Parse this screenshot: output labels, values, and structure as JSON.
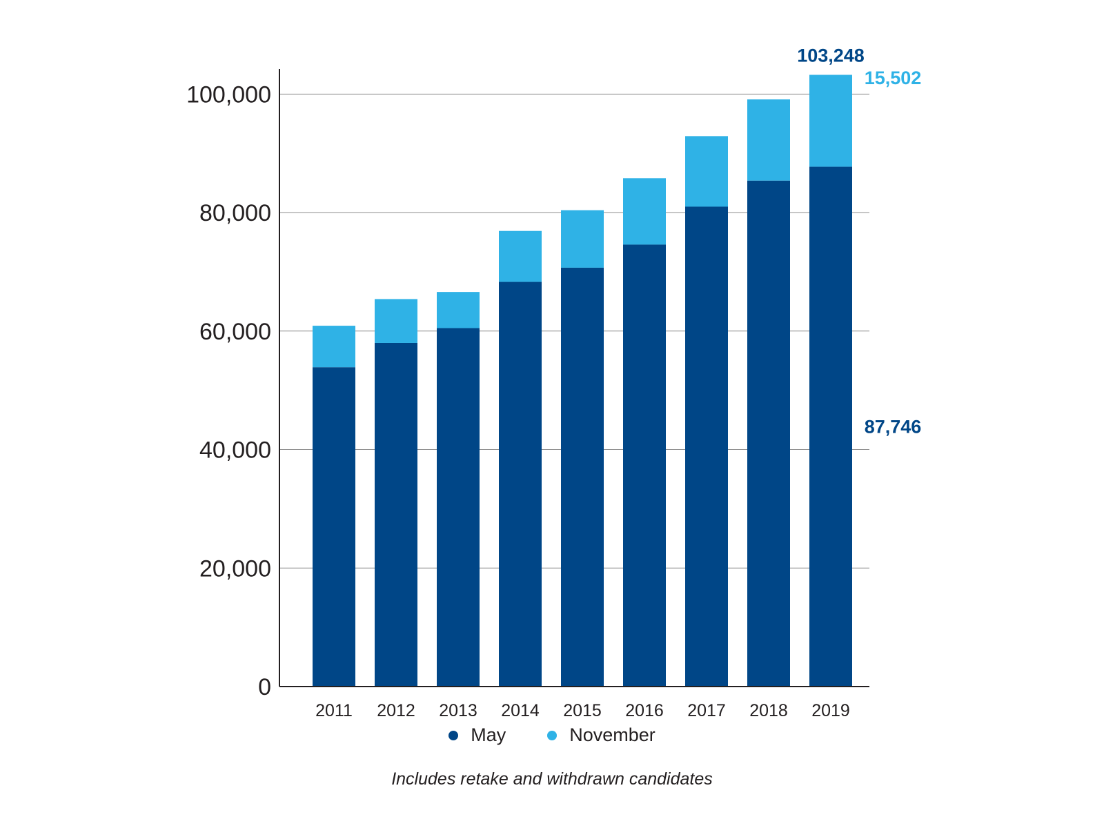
{
  "chart_data": {
    "type": "bar",
    "stacked": true,
    "categories": [
      "2011",
      "2012",
      "2013",
      "2014",
      "2015",
      "2016",
      "2017",
      "2018",
      "2019"
    ],
    "series": [
      {
        "name": "May",
        "color": "#004687",
        "values": [
          53900,
          58000,
          60500,
          68300,
          70700,
          74600,
          81000,
          85400,
          87746
        ]
      },
      {
        "name": "November",
        "color": "#2fb2e6",
        "values": [
          7000,
          7400,
          6100,
          8600,
          9700,
          11200,
          11900,
          13700,
          15502
        ]
      }
    ],
    "ylim": [
      0,
      104000
    ],
    "yticks": [
      0,
      20000,
      40000,
      60000,
      80000,
      100000
    ],
    "ytick_labels": [
      "0",
      "20,000",
      "40,000",
      "60,000",
      "80,000",
      "100,000"
    ],
    "grid": true,
    "legend_position": "bottom",
    "annotations": [
      {
        "text": "103,248",
        "color": "#004687"
      },
      {
        "text": "15,502",
        "color": "#2fb2e6"
      },
      {
        "text": "87,746",
        "color": "#004687"
      }
    ],
    "note": "Includes retake and withdrawn candidates"
  }
}
